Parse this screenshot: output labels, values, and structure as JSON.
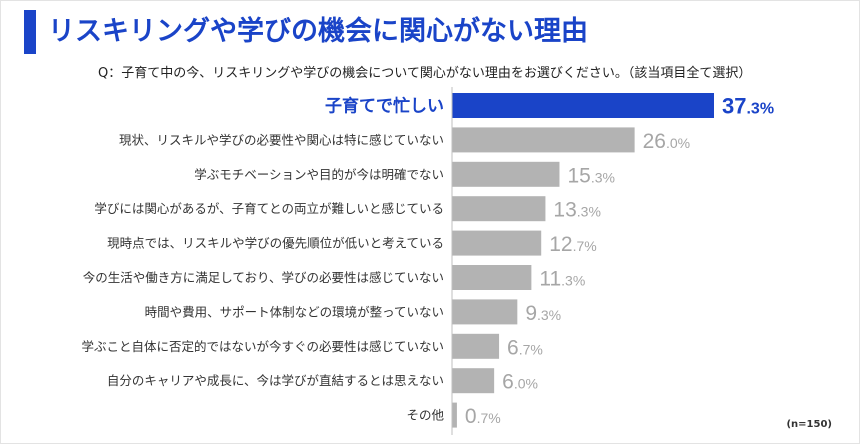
{
  "title": "リスキリングや学びの機会に関心がない理由",
  "question": "Q：子育て中の今、リスキリングや学びの機会について関心がない理由をお選びください。（該当項目全て選択）",
  "note": "(n=150)",
  "colors": {
    "accent": "#1a44c8",
    "bar": "#b3b3b3",
    "label": "#333333",
    "value": "#a6a6a6"
  },
  "chart_data": {
    "type": "bar",
    "orientation": "horizontal",
    "unit": "%",
    "categories": [
      "子育てで忙しい",
      "現状、リスキルや学びの必要性や関心は特に感じていない",
      "学ぶモチベーションや目的が今は明確でない",
      "学びには関心があるが、子育てとの両立が難しいと感じている",
      "現時点では、リスキルや学びの優先順位が低いと考えている",
      "今の生活や働き方に満足しており、学びの必要性は感じていない",
      "時間や費用、サポート体制などの環境が整っていない",
      "学ぶこと自体に否定的ではないが今すぐの必要性は感じていない",
      "自分のキャリアや成長に、今は学びが直結するとは思えない",
      "その他"
    ],
    "values": [
      37.3,
      26.0,
      15.3,
      13.3,
      12.7,
      11.3,
      9.3,
      6.7,
      6.0,
      0.7
    ],
    "value_labels": [
      {
        "int": "37",
        "dec": ".3%"
      },
      {
        "int": "26",
        "dec": ".0%"
      },
      {
        "int": "15",
        "dec": ".3%"
      },
      {
        "int": "13",
        "dec": ".3%"
      },
      {
        "int": "12",
        "dec": ".7%"
      },
      {
        "int": "11",
        "dec": ".3%"
      },
      {
        "int": "9",
        "dec": ".3%"
      },
      {
        "int": "6",
        "dec": ".7%"
      },
      {
        "int": "6",
        "dec": ".0%"
      },
      {
        "int": "0",
        "dec": ".7%"
      }
    ],
    "highlight_index": 0,
    "xlim": [
      0,
      37.3
    ],
    "grid": false,
    "legend": "none"
  }
}
